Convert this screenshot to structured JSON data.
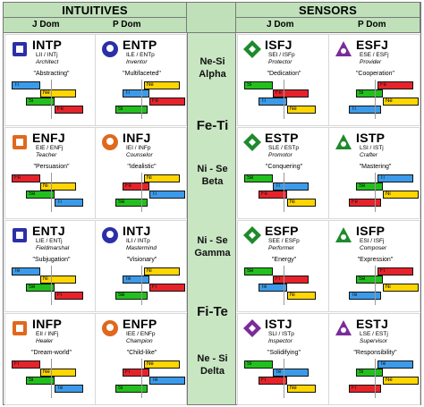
{
  "header": {
    "intuitives": "INTUITIVES",
    "sensors": "SENSORS",
    "j_dom_left": "J Dom",
    "p_dom_left": "P Dom",
    "j_dom_right": "J Dom",
    "p_dom_right": "P Dom"
  },
  "quadras": [
    {
      "functions": "Ne-Si",
      "name": "Alpha"
    },
    {
      "functions": "Ni - Se",
      "name": "Beta"
    },
    {
      "functions": "Ni - Se",
      "name": "Gamma"
    },
    {
      "functions": "Ne - Si",
      "name": "Delta"
    }
  ],
  "axes": [
    "Fe-Ti",
    "Fi-Te"
  ],
  "types": [
    {
      "code": "INTP",
      "socionics": "LII / INTj",
      "role": "Architect",
      "quote": "\"Abstracting\"",
      "icon": "architect-icon",
      "color": "#2b2fa8",
      "bars": [
        {
          "label": "Ti",
          "color": "#3b9bea"
        },
        {
          "label": "Ne",
          "color": "#ffd600"
        },
        {
          "label": "Si",
          "color": "#22c01c"
        },
        {
          "label": "Fe",
          "color": "#e6232b"
        }
      ]
    },
    {
      "code": "ENTP",
      "socionics": "ILE / ENTp",
      "role": "Inventor",
      "quote": "\"Multifaceted\"",
      "icon": "lightbulb-icon",
      "color": "#2b2fa8",
      "bars": [
        {
          "label": "Ne",
          "color": "#ffd600"
        },
        {
          "label": "Ti",
          "color": "#3b9bea"
        },
        {
          "label": "Fe",
          "color": "#e6232b"
        },
        {
          "label": "Si",
          "color": "#22c01c"
        }
      ]
    },
    {
      "code": "ISFJ",
      "socionics": "SEI / ISFp",
      "role": "Protector",
      "quote": "\"Dedication\"",
      "icon": "shield-icon",
      "color": "#1e8a2c",
      "bars": [
        {
          "label": "Si",
          "color": "#22c01c"
        },
        {
          "label": "Fe",
          "color": "#e6232b"
        },
        {
          "label": "Ti",
          "color": "#3b9bea"
        },
        {
          "label": "Ne",
          "color": "#ffd600"
        }
      ]
    },
    {
      "code": "ESFJ",
      "socionics": "ESE / ESFj",
      "role": "Provider",
      "quote": "\"Cooperation\"",
      "icon": "provider-icon",
      "color": "#7a2c9a",
      "bars": [
        {
          "label": "Fe",
          "color": "#e6232b"
        },
        {
          "label": "Si",
          "color": "#22c01c"
        },
        {
          "label": "Ne",
          "color": "#ffd600"
        },
        {
          "label": "Ti",
          "color": "#3b9bea"
        }
      ]
    },
    {
      "code": "ENFJ",
      "socionics": "EIE / ENFj",
      "role": "Teacher",
      "quote": "\"Persuasion\"",
      "icon": "teacher-icon",
      "color": "#e0681c",
      "bars": [
        {
          "label": "Fe",
          "color": "#e6232b"
        },
        {
          "label": "Ni",
          "color": "#ffd600"
        },
        {
          "label": "Se",
          "color": "#22c01c"
        },
        {
          "label": "Ti",
          "color": "#3b9bea"
        }
      ]
    },
    {
      "code": "INFJ",
      "socionics": "IEI / INFp",
      "role": "Counselor",
      "quote": "\"Idealistic\"",
      "icon": "counselor-icon",
      "color": "#e0681c",
      "bars": [
        {
          "label": "Ni",
          "color": "#ffd600"
        },
        {
          "label": "Fe",
          "color": "#e6232b"
        },
        {
          "label": "Ti",
          "color": "#3b9bea"
        },
        {
          "label": "Se",
          "color": "#22c01c"
        }
      ]
    },
    {
      "code": "ESTP",
      "socionics": "SLE / ESTp",
      "role": "Promotor",
      "quote": "\"Conquering\"",
      "icon": "promotor-icon",
      "color": "#1e8a2c",
      "bars": [
        {
          "label": "Se",
          "color": "#22c01c"
        },
        {
          "label": "Ti",
          "color": "#3b9bea"
        },
        {
          "label": "Fe",
          "color": "#e6232b"
        },
        {
          "label": "Ni",
          "color": "#ffd600"
        }
      ]
    },
    {
      "code": "ISTP",
      "socionics": "LSI / ISTj",
      "role": "Crafter",
      "quote": "\"Mastering\"",
      "icon": "crafter-icon",
      "color": "#1e8a2c",
      "bars": [
        {
          "label": "Ti",
          "color": "#3b9bea"
        },
        {
          "label": "Se",
          "color": "#22c01c"
        },
        {
          "label": "Ni",
          "color": "#ffd600"
        },
        {
          "label": "Fe",
          "color": "#e6232b"
        }
      ]
    },
    {
      "code": "ENTJ",
      "socionics": "LIE / ENTj",
      "role": "Fieldmarshal",
      "quote": "\"Subjugation\"",
      "icon": "fieldmarshal-icon",
      "color": "#2b2fa8",
      "bars": [
        {
          "label": "Te",
          "color": "#3b9bea"
        },
        {
          "label": "Ni",
          "color": "#ffd600"
        },
        {
          "label": "Se",
          "color": "#22c01c"
        },
        {
          "label": "Fi",
          "color": "#e6232b"
        }
      ]
    },
    {
      "code": "INTJ",
      "socionics": "ILI / INTp",
      "role": "Mastermind",
      "quote": "\"Visionary\"",
      "icon": "chess-rook-icon",
      "color": "#2b2fa8",
      "bars": [
        {
          "label": "Ni",
          "color": "#ffd600"
        },
        {
          "label": "Te",
          "color": "#3b9bea"
        },
        {
          "label": "Fi",
          "color": "#e6232b"
        },
        {
          "label": "Se",
          "color": "#22c01c"
        }
      ]
    },
    {
      "code": "ESFP",
      "socionics": "SEE / ESFp",
      "role": "Performer",
      "quote": "\"Energy\"",
      "icon": "performer-icon",
      "color": "#1e8a2c",
      "bars": [
        {
          "label": "Se",
          "color": "#22c01c"
        },
        {
          "label": "Fi",
          "color": "#e6232b"
        },
        {
          "label": "Te",
          "color": "#3b9bea"
        },
        {
          "label": "Ni",
          "color": "#ffd600"
        }
      ]
    },
    {
      "code": "ISFP",
      "socionics": "ESI / ISFj",
      "role": "Composer",
      "quote": "\"Expression\"",
      "icon": "composer-icon",
      "color": "#1e8a2c",
      "bars": [
        {
          "label": "Fi",
          "color": "#e6232b"
        },
        {
          "label": "Se",
          "color": "#22c01c"
        },
        {
          "label": "Ni",
          "color": "#ffd600"
        },
        {
          "label": "Te",
          "color": "#3b9bea"
        }
      ]
    },
    {
      "code": "INFP",
      "socionics": "EII / INFj",
      "role": "Healer",
      "quote": "\"Dream-world\"",
      "icon": "healer-icon",
      "color": "#e0681c",
      "bars": [
        {
          "label": "Fi",
          "color": "#e6232b"
        },
        {
          "label": "Ne",
          "color": "#ffd600"
        },
        {
          "label": "Si",
          "color": "#22c01c"
        },
        {
          "label": "Te",
          "color": "#3b9bea"
        }
      ]
    },
    {
      "code": "ENFP",
      "socionics": "IEE / ENFp",
      "role": "Champion",
      "quote": "\"Child-like\"",
      "icon": "champion-icon",
      "color": "#e0681c",
      "bars": [
        {
          "label": "Ne",
          "color": "#ffd600"
        },
        {
          "label": "Fi",
          "color": "#e6232b"
        },
        {
          "label": "Te",
          "color": "#3b9bea"
        },
        {
          "label": "Si",
          "color": "#22c01c"
        }
      ]
    },
    {
      "code": "ISTJ",
      "socionics": "SLI / ISTp",
      "role": "Inspector",
      "quote": "\"Solidifying\"",
      "icon": "inspector-icon",
      "color": "#7a2c9a",
      "bars": [
        {
          "label": "Si",
          "color": "#22c01c"
        },
        {
          "label": "Te",
          "color": "#3b9bea"
        },
        {
          "label": "Fi",
          "color": "#e6232b"
        },
        {
          "label": "Ne",
          "color": "#ffd600"
        }
      ]
    },
    {
      "code": "ESTJ",
      "socionics": "LSE / ESTj",
      "role": "Supervisor",
      "quote": "\"Responsibility\"",
      "icon": "supervisor-icon",
      "color": "#7a2c9a",
      "bars": [
        {
          "label": "Te",
          "color": "#3b9bea"
        },
        {
          "label": "Si",
          "color": "#22c01c"
        },
        {
          "label": "Ne",
          "color": "#ffd600"
        },
        {
          "label": "Fi",
          "color": "#e6232b"
        }
      ]
    }
  ]
}
